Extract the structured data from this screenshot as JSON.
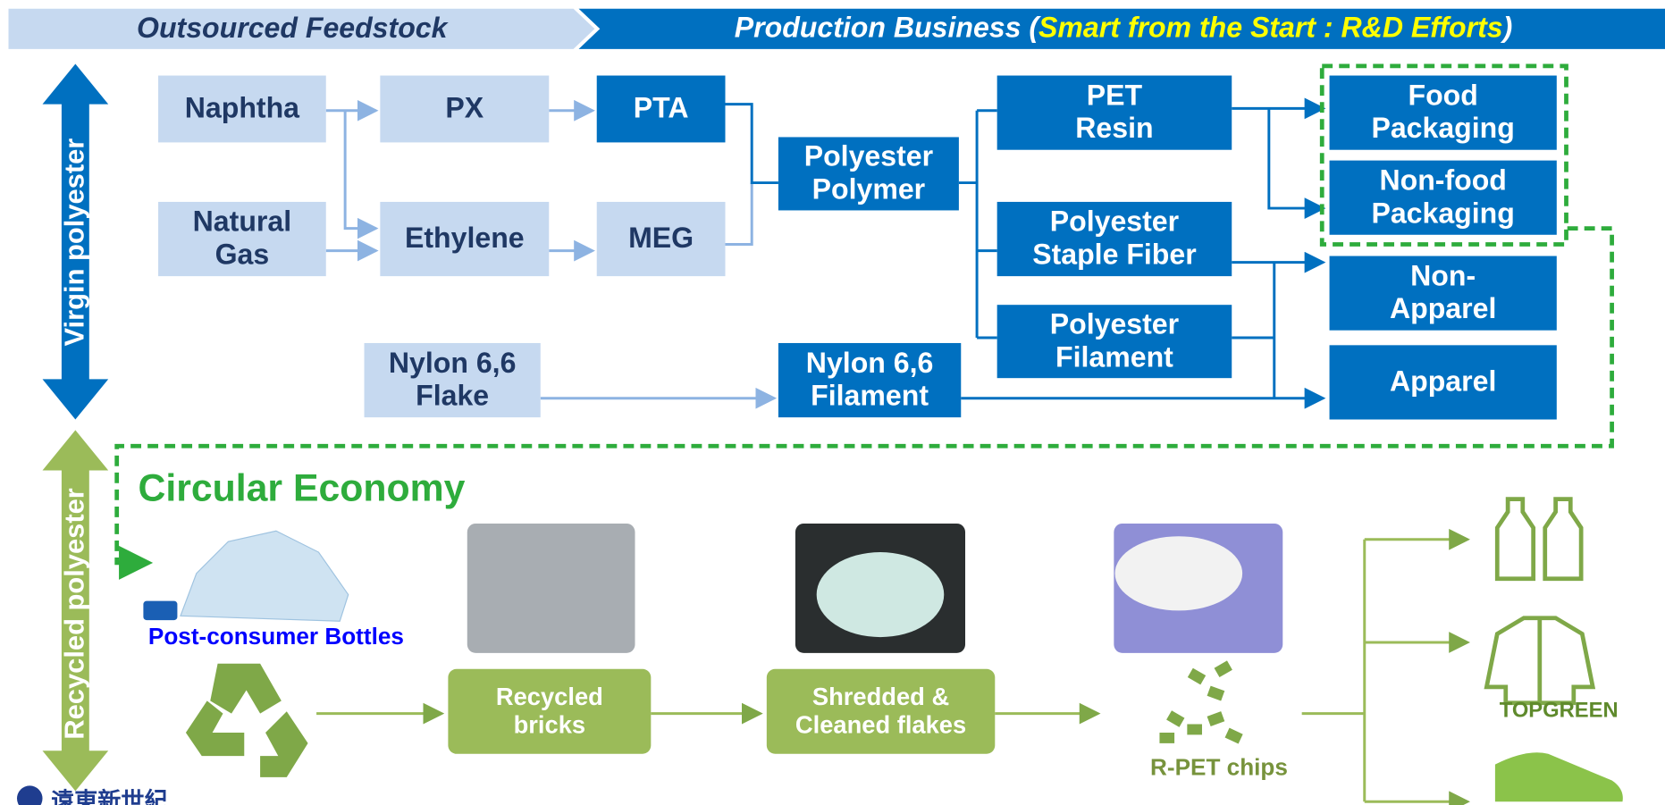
{
  "header": {
    "left": "Outsourced Feedstock",
    "right_prefix": "Production Business (",
    "right_highlight": "Smart from the Start : R&D Efforts",
    "right_suffix": ")"
  },
  "side_labels": [
    "Virgin polyester",
    "Recycled polyester"
  ],
  "nodes": [
    {
      "lines": [
        "Naphtha"
      ]
    },
    {
      "lines": [
        "Natural",
        "Gas"
      ]
    },
    {
      "lines": [
        "PX"
      ]
    },
    {
      "lines": [
        "Ethylene"
      ]
    },
    {
      "lines": [
        "PTA"
      ]
    },
    {
      "lines": [
        "MEG"
      ]
    },
    {
      "lines": [
        "Polyester",
        "Polymer"
      ]
    },
    {
      "lines": [
        "PET",
        "Resin"
      ]
    },
    {
      "lines": [
        "Polyester",
        "Staple Fiber"
      ]
    },
    {
      "lines": [
        "Polyester",
        "Filament"
      ]
    },
    {
      "lines": [
        "Nylon 6,6",
        "Flake"
      ]
    },
    {
      "lines": [
        "Nylon 6,6",
        "Filament"
      ]
    },
    {
      "lines": [
        "Food",
        "Packaging"
      ]
    },
    {
      "lines": [
        "Non-food",
        "Packaging"
      ]
    },
    {
      "lines": [
        "Non-",
        "Apparel"
      ]
    },
    {
      "lines": [
        "Apparel"
      ]
    }
  ],
  "circular": {
    "title": "Circular Economy",
    "bottles": "Post-consumer Bottles",
    "steps": [
      {
        "lines": [
          "Recycled",
          "bricks"
        ]
      },
      {
        "lines": [
          "Shredded &",
          "Cleaned flakes"
        ]
      }
    ],
    "chips": "R-PET chips",
    "brand": "TOPGREEN"
  },
  "logo": "遠東新世紀"
}
